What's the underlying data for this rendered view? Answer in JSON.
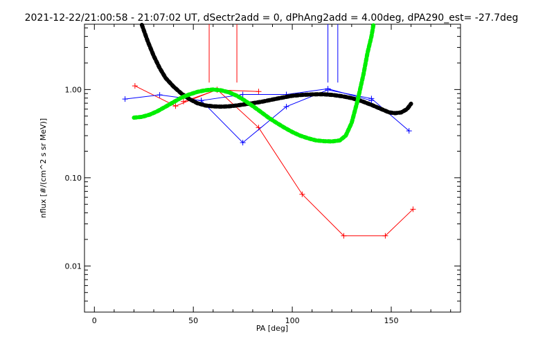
{
  "chart_data": {
    "type": "line",
    "title": "2021-12-22/21:00:58 - 21:07:02 UT, dSectr2add = 0, dPhAng2add = 4.00deg, dPA290_est= -27.7deg",
    "xlabel": "PA [deg]",
    "ylabel": "nflux [#/(cm^2 s sr MeV)]",
    "xlim": [
      -5,
      185
    ],
    "ylim": [
      0.003,
      5.5
    ],
    "yscale": "log",
    "x_ticks": [
      0,
      50,
      100,
      150
    ],
    "x_tick_labels": [
      "0",
      "50",
      "100",
      "150"
    ],
    "y_ticks": [
      0.01,
      0.1,
      1.0
    ],
    "y_tick_labels": [
      "0.01",
      "0.10",
      "1.00"
    ],
    "grid": false,
    "series": [
      {
        "style": "line-plus",
        "color": "#ff0000",
        "points": [
          [
            20.5,
            1.1
          ],
          [
            41,
            0.65
          ],
          [
            62,
            1.0
          ],
          [
            83,
            0.37
          ],
          [
            105,
            0.065
          ],
          [
            126,
            0.022
          ],
          [
            147,
            0.022
          ],
          [
            161,
            0.044
          ]
        ]
      },
      {
        "style": "line-plus",
        "color": "#ff0000",
        "points": [
          [
            45,
            0.73
          ],
          [
            62,
            0.99
          ],
          [
            83,
            0.95
          ]
        ]
      },
      {
        "style": "line-plus",
        "color": "#0000ff",
        "points": [
          [
            15.5,
            0.78
          ],
          [
            33,
            0.87
          ],
          [
            54,
            0.75
          ],
          [
            75,
            0.25
          ],
          [
            97,
            0.64
          ],
          [
            118,
            0.99
          ],
          [
            140,
            0.79
          ],
          [
            159,
            0.34
          ]
        ]
      },
      {
        "style": "line-plus",
        "color": "#0000ff",
        "points": [
          [
            54,
            0.75
          ],
          [
            75,
            0.88
          ],
          [
            97,
            0.88
          ],
          [
            118,
            1.02
          ],
          [
            140,
            0.75
          ]
        ]
      },
      {
        "style": "dots",
        "color": "#000000",
        "points": [
          [
            24,
            5.5
          ],
          [
            27,
            3.5
          ],
          [
            30,
            2.4
          ],
          [
            33,
            1.75
          ],
          [
            36,
            1.35
          ],
          [
            40,
            1.08
          ],
          [
            44,
            0.9
          ],
          [
            48,
            0.78
          ],
          [
            52,
            0.7
          ],
          [
            56,
            0.66
          ],
          [
            60,
            0.645
          ],
          [
            64,
            0.64
          ],
          [
            68,
            0.645
          ],
          [
            72,
            0.66
          ],
          [
            76,
            0.68
          ],
          [
            80,
            0.7
          ],
          [
            85,
            0.73
          ],
          [
            90,
            0.77
          ],
          [
            95,
            0.81
          ],
          [
            100,
            0.85
          ],
          [
            105,
            0.87
          ],
          [
            110,
            0.88
          ],
          [
            115,
            0.885
          ],
          [
            120,
            0.87
          ],
          [
            125,
            0.84
          ],
          [
            130,
            0.8
          ],
          [
            135,
            0.74
          ],
          [
            140,
            0.67
          ],
          [
            145,
            0.6
          ],
          [
            149,
            0.55
          ],
          [
            152,
            0.54
          ],
          [
            155,
            0.55
          ],
          [
            158,
            0.6
          ],
          [
            160,
            0.69
          ]
        ]
      },
      {
        "style": "dots",
        "color": "#00ee00",
        "points": [
          [
            20,
            0.48
          ],
          [
            24,
            0.49
          ],
          [
            28,
            0.52
          ],
          [
            32,
            0.57
          ],
          [
            36,
            0.64
          ],
          [
            40,
            0.72
          ],
          [
            44,
            0.81
          ],
          [
            48,
            0.88
          ],
          [
            52,
            0.94
          ],
          [
            56,
            0.98
          ],
          [
            60,
            1.0
          ],
          [
            64,
            0.98
          ],
          [
            68,
            0.93
          ],
          [
            72,
            0.85
          ],
          [
            76,
            0.75
          ],
          [
            80,
            0.65
          ],
          [
            84,
            0.56
          ],
          [
            88,
            0.48
          ],
          [
            92,
            0.42
          ],
          [
            96,
            0.37
          ],
          [
            100,
            0.33
          ],
          [
            104,
            0.3
          ],
          [
            108,
            0.28
          ],
          [
            112,
            0.265
          ],
          [
            116,
            0.26
          ],
          [
            120,
            0.258
          ],
          [
            124,
            0.265
          ],
          [
            127,
            0.3
          ],
          [
            130,
            0.42
          ],
          [
            133,
            0.75
          ],
          [
            136,
            1.5
          ],
          [
            138,
            2.6
          ],
          [
            140,
            4.0
          ],
          [
            141,
            5.5
          ]
        ]
      }
    ],
    "vertical_markers": [
      {
        "x": 58,
        "color": "#ff0000"
      },
      {
        "x": 72,
        "color": "#ff0000"
      },
      {
        "x": 118,
        "color": "#0000ff"
      },
      {
        "x": 123,
        "color": "#0000ff"
      }
    ]
  }
}
